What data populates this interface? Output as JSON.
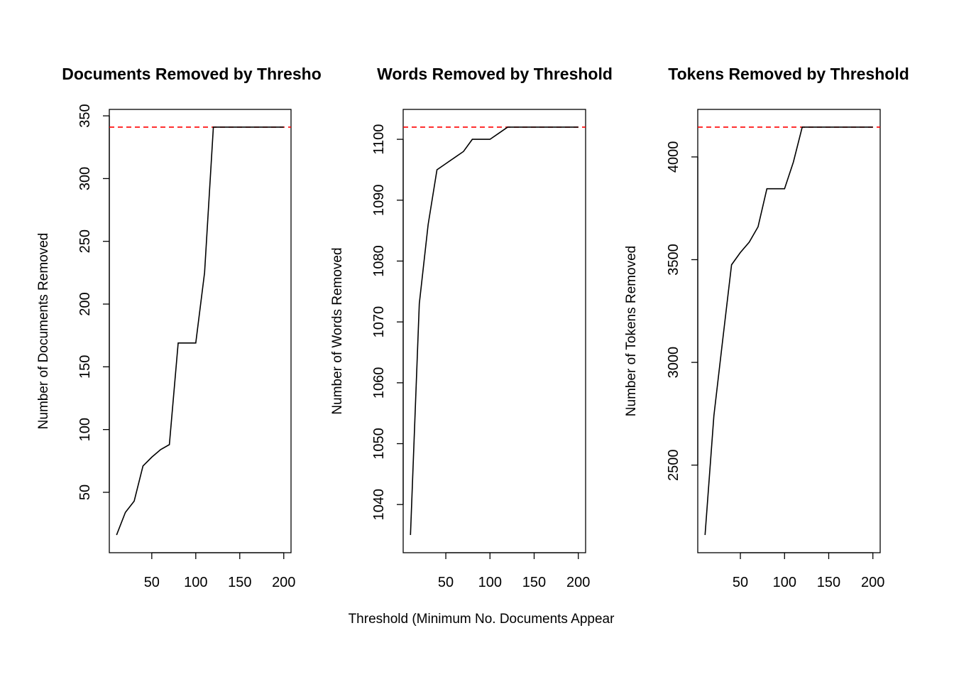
{
  "figure": {
    "shared_xlabel": "Threshold (Minimum No. Documents Appear"
  },
  "chart_data": [
    {
      "type": "line",
      "title": "Documents Removed by Thresho",
      "xlabel": "",
      "ylabel": "Number of Documents Removed",
      "xlim": [
        10,
        200
      ],
      "ylim": [
        16,
        341
      ],
      "xticks": [
        50,
        100,
        150,
        200
      ],
      "yticks": [
        50,
        100,
        150,
        200,
        250,
        300,
        350
      ],
      "x": [
        10,
        20,
        30,
        40,
        50,
        60,
        70,
        80,
        90,
        100,
        110,
        120,
        130,
        140,
        150,
        160,
        170,
        180,
        190,
        200
      ],
      "series": [
        {
          "values": [
            16,
            34,
            43,
            71,
            78,
            84,
            88,
            169,
            169,
            169,
            225,
            341,
            341,
            341,
            341,
            341,
            341,
            341,
            341,
            341
          ],
          "color": "#000000"
        }
      ],
      "reference_line": {
        "y": 341,
        "color": "#ff0000",
        "style": "dashed"
      },
      "grid": false,
      "legend": "none"
    },
    {
      "type": "line",
      "title": "Words Removed by Threshold",
      "xlabel": "",
      "ylabel": "Number of Words Removed",
      "xlim": [
        10,
        200
      ],
      "ylim": [
        1035,
        1102
      ],
      "xticks": [
        50,
        100,
        150,
        200
      ],
      "yticks": [
        1040,
        1050,
        1060,
        1070,
        1080,
        1090,
        1100
      ],
      "x": [
        10,
        20,
        30,
        40,
        50,
        60,
        70,
        80,
        90,
        100,
        110,
        120,
        130,
        140,
        150,
        160,
        170,
        180,
        190,
        200
      ],
      "series": [
        {
          "values": [
            1035,
            1073,
            1086,
            1095,
            1096,
            1097,
            1098,
            1100,
            1100,
            1100,
            1101,
            1102,
            1102,
            1102,
            1102,
            1102,
            1102,
            1102,
            1102,
            1102
          ],
          "color": "#000000"
        }
      ],
      "reference_line": {
        "y": 1102,
        "color": "#ff0000",
        "style": "dashed"
      },
      "grid": false,
      "legend": "none"
    },
    {
      "type": "line",
      "title": "Tokens Removed by Threshold",
      "xlabel": "",
      "ylabel": "Number of Tokens Removed",
      "xlim": [
        10,
        200
      ],
      "ylim": [
        2160,
        4145
      ],
      "xticks": [
        50,
        100,
        150,
        200
      ],
      "yticks": [
        2500,
        3000,
        3500,
        4000
      ],
      "x": [
        10,
        20,
        30,
        40,
        50,
        60,
        70,
        80,
        90,
        100,
        110,
        120,
        130,
        140,
        150,
        160,
        170,
        180,
        190,
        200
      ],
      "series": [
        {
          "values": [
            2160,
            2740,
            3110,
            3475,
            3535,
            3585,
            3660,
            3845,
            3845,
            3845,
            3975,
            4145,
            4145,
            4145,
            4145,
            4145,
            4145,
            4145,
            4145,
            4145
          ],
          "color": "#000000"
        }
      ],
      "reference_line": {
        "y": 4145,
        "color": "#ff0000",
        "style": "dashed"
      },
      "grid": false,
      "legend": "none"
    }
  ]
}
